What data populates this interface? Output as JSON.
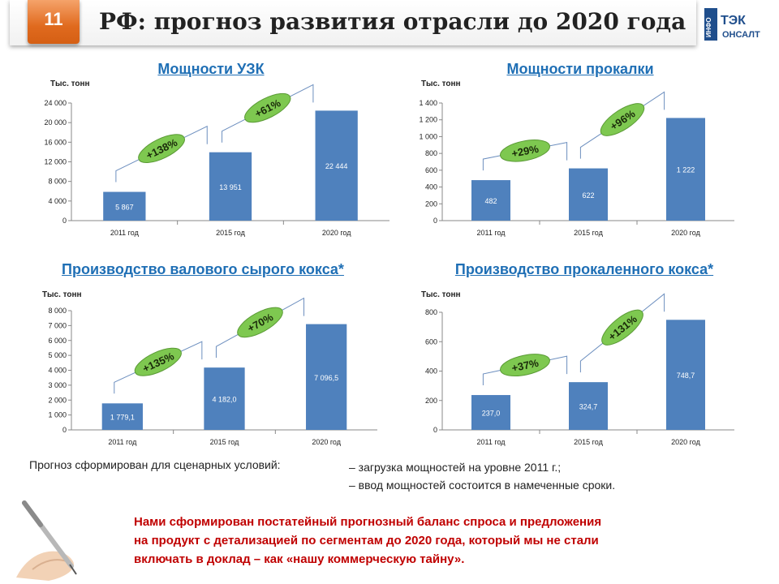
{
  "header": {
    "slide_number": "11",
    "title": "РФ: прогноз развития отрасли до 2020 года"
  },
  "logo": {
    "text_top": "ИНФО",
    "text_main": "ТЭК",
    "text_bottom": "ОНСАЛТ"
  },
  "chart_data": [
    {
      "type": "bar",
      "title": "Мощности УЗК",
      "ylabel": "Тыс. тонн",
      "categories": [
        "2011 год",
        "2015 год",
        "2020 год"
      ],
      "values": [
        5867,
        13951,
        22444
      ],
      "value_labels": [
        "5 867",
        "13 951",
        "22 444"
      ],
      "ylim": [
        0,
        24000
      ],
      "yticks": [
        0,
        4000,
        8000,
        12000,
        16000,
        20000,
        24000
      ],
      "ytick_labels": [
        "0",
        "4 000",
        "8 000",
        "12 000",
        "16 000",
        "20 000",
        "24 000"
      ],
      "growth": [
        "+138%",
        "+61%"
      ]
    },
    {
      "type": "bar",
      "title": "Мощности прокалки",
      "ylabel": "Тыс. тонн",
      "categories": [
        "2011 год",
        "2015 год",
        "2020 год"
      ],
      "values": [
        482,
        622,
        1222
      ],
      "value_labels": [
        "482",
        "622",
        "1 222"
      ],
      "ylim": [
        0,
        1400
      ],
      "yticks": [
        0,
        200,
        400,
        600,
        800,
        1000,
        1200,
        1400
      ],
      "ytick_labels": [
        "0",
        "200",
        "400",
        "600",
        "800",
        "1 000",
        "1 200",
        "1 400"
      ],
      "growth": [
        "+29%",
        "+96%"
      ]
    },
    {
      "type": "bar",
      "title": "Производство валового сырого кокса*",
      "ylabel": "Тыс. тонн",
      "categories": [
        "2011 год",
        "2015 год",
        "2020 год"
      ],
      "values": [
        1779.1,
        4182.0,
        7096.5
      ],
      "value_labels": [
        "1 779,1",
        "4 182,0",
        "7 096,5"
      ],
      "ylim": [
        0,
        8000
      ],
      "yticks": [
        0,
        1000,
        2000,
        3000,
        4000,
        5000,
        6000,
        7000,
        8000
      ],
      "ytick_labels": [
        "0",
        "1 000",
        "2 000",
        "3 000",
        "4 000",
        "5 000",
        "6 000",
        "7 000",
        "8 000"
      ],
      "growth": [
        "+135%",
        "+70%"
      ]
    },
    {
      "type": "bar",
      "title": "Производство прокаленного кокса*",
      "ylabel": "Тыс. тонн",
      "categories": [
        "2011 год",
        "2015 год",
        "2020 год"
      ],
      "values": [
        237.0,
        324.7,
        748.7
      ],
      "value_labels": [
        "237,0",
        "324,7",
        "748,7"
      ],
      "ylim": [
        0,
        800
      ],
      "yticks": [
        0,
        200,
        400,
        600,
        800
      ],
      "ytick_labels": [
        "0",
        "200",
        "400",
        "600",
        "800"
      ],
      "growth": [
        "+37%",
        "+131%"
      ]
    }
  ],
  "notes": {
    "left": "Прогноз сформирован для сценарных условий:",
    "line1": "– загрузка мощностей на уровне 2011 г.;",
    "line2": "–  ввод мощностей состоится в намеченные сроки."
  },
  "footer": {
    "line1": "Нами сформирован постатейный прогнозный баланс спроса и предложения",
    "line2": "на продукт с детализацией по сегментам  до 2020 года, который мы не стали",
    "line3": "включать в доклад – как «нашу коммерческую тайну»."
  },
  "colors": {
    "bar": "#4f81bd",
    "badge": "#7ec850",
    "title_blue": "#1f6fb5",
    "accent": "#e06a1e",
    "footer_red": "#c00000"
  }
}
